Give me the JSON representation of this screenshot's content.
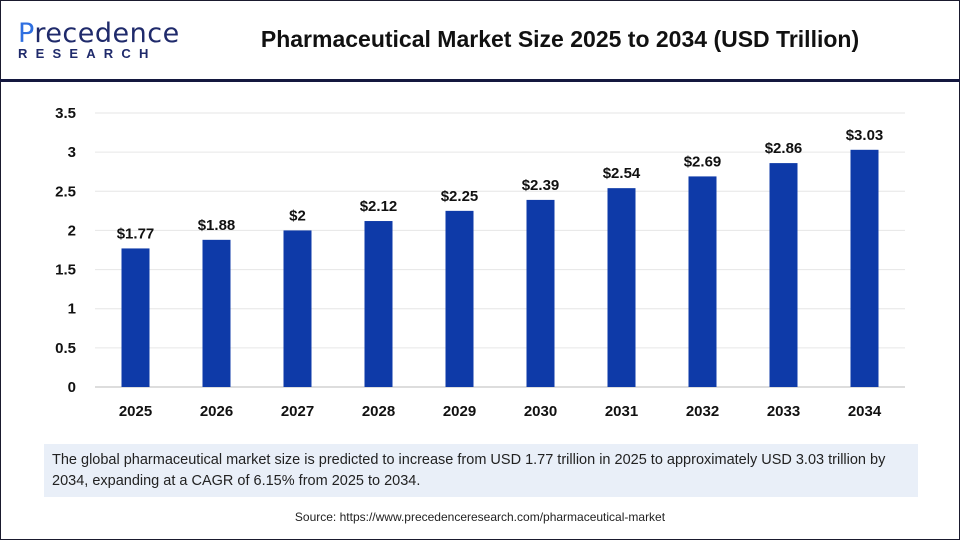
{
  "logo": {
    "text_main": "Precedence",
    "text_sub": "RESEARCH"
  },
  "header": {
    "title": "Pharmaceutical Market Size 2025 to 2034 (USD Trillion)"
  },
  "chart_data": {
    "type": "bar",
    "title": "Pharmaceutical Market Size 2025 to 2034 (USD Trillion)",
    "categories": [
      "2025",
      "2026",
      "2027",
      "2028",
      "2029",
      "2030",
      "2031",
      "2032",
      "2033",
      "2034"
    ],
    "values": [
      1.77,
      1.88,
      2,
      2.12,
      2.25,
      2.39,
      2.54,
      2.69,
      2.86,
      3.03
    ],
    "data_labels": [
      "$1.77",
      "$1.88",
      "$2",
      "$2.12",
      "$2.25",
      "$2.39",
      "$2.54",
      "$2.69",
      "$2.86",
      "$3.03"
    ],
    "yticks": [
      "0",
      "0.5",
      "1",
      "1.5",
      "2",
      "2.5",
      "3",
      "3.5"
    ],
    "ylim": [
      0,
      3.5
    ],
    "xlabel": "",
    "ylabel": "",
    "grid": true,
    "bar_color": "#0e3aa8"
  },
  "caption": "The global pharmaceutical market size is predicted to increase from USD 1.77 trillion in 2025 to approximately USD 3.03 trillion by 2034, expanding at a CAGR of 6.15% from 2025 to 2034.",
  "source": "Source: https://www.precedenceresearch.com/pharmaceutical-market"
}
